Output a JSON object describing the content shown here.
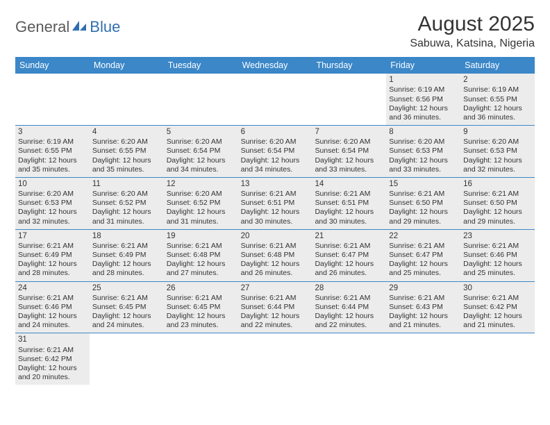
{
  "logo": {
    "part1": "General",
    "part2": "Blue"
  },
  "title": "August 2025",
  "location": "Sabuwa, Katsina, Nigeria",
  "colors": {
    "header_bg": "#3b87c8",
    "shade_bg": "#ececec",
    "rule": "#3b87c8",
    "logo_blue": "#2f6fb0",
    "logo_gray": "#5a5a5a"
  },
  "dow": [
    "Sunday",
    "Monday",
    "Tuesday",
    "Wednesday",
    "Thursday",
    "Friday",
    "Saturday"
  ],
  "weeks": [
    [
      {
        "n": "",
        "sr": "",
        "ss": "",
        "dl": ""
      },
      {
        "n": "",
        "sr": "",
        "ss": "",
        "dl": ""
      },
      {
        "n": "",
        "sr": "",
        "ss": "",
        "dl": ""
      },
      {
        "n": "",
        "sr": "",
        "ss": "",
        "dl": ""
      },
      {
        "n": "",
        "sr": "",
        "ss": "",
        "dl": ""
      },
      {
        "n": "1",
        "sr": "Sunrise: 6:19 AM",
        "ss": "Sunset: 6:56 PM",
        "dl": "Daylight: 12 hours and 36 minutes."
      },
      {
        "n": "2",
        "sr": "Sunrise: 6:19 AM",
        "ss": "Sunset: 6:55 PM",
        "dl": "Daylight: 12 hours and 36 minutes."
      }
    ],
    [
      {
        "n": "3",
        "sr": "Sunrise: 6:19 AM",
        "ss": "Sunset: 6:55 PM",
        "dl": "Daylight: 12 hours and 35 minutes."
      },
      {
        "n": "4",
        "sr": "Sunrise: 6:20 AM",
        "ss": "Sunset: 6:55 PM",
        "dl": "Daylight: 12 hours and 35 minutes."
      },
      {
        "n": "5",
        "sr": "Sunrise: 6:20 AM",
        "ss": "Sunset: 6:54 PM",
        "dl": "Daylight: 12 hours and 34 minutes."
      },
      {
        "n": "6",
        "sr": "Sunrise: 6:20 AM",
        "ss": "Sunset: 6:54 PM",
        "dl": "Daylight: 12 hours and 34 minutes."
      },
      {
        "n": "7",
        "sr": "Sunrise: 6:20 AM",
        "ss": "Sunset: 6:54 PM",
        "dl": "Daylight: 12 hours and 33 minutes."
      },
      {
        "n": "8",
        "sr": "Sunrise: 6:20 AM",
        "ss": "Sunset: 6:53 PM",
        "dl": "Daylight: 12 hours and 33 minutes."
      },
      {
        "n": "9",
        "sr": "Sunrise: 6:20 AM",
        "ss": "Sunset: 6:53 PM",
        "dl": "Daylight: 12 hours and 32 minutes."
      }
    ],
    [
      {
        "n": "10",
        "sr": "Sunrise: 6:20 AM",
        "ss": "Sunset: 6:53 PM",
        "dl": "Daylight: 12 hours and 32 minutes."
      },
      {
        "n": "11",
        "sr": "Sunrise: 6:20 AM",
        "ss": "Sunset: 6:52 PM",
        "dl": "Daylight: 12 hours and 31 minutes."
      },
      {
        "n": "12",
        "sr": "Sunrise: 6:20 AM",
        "ss": "Sunset: 6:52 PM",
        "dl": "Daylight: 12 hours and 31 minutes."
      },
      {
        "n": "13",
        "sr": "Sunrise: 6:21 AM",
        "ss": "Sunset: 6:51 PM",
        "dl": "Daylight: 12 hours and 30 minutes."
      },
      {
        "n": "14",
        "sr": "Sunrise: 6:21 AM",
        "ss": "Sunset: 6:51 PM",
        "dl": "Daylight: 12 hours and 30 minutes."
      },
      {
        "n": "15",
        "sr": "Sunrise: 6:21 AM",
        "ss": "Sunset: 6:50 PM",
        "dl": "Daylight: 12 hours and 29 minutes."
      },
      {
        "n": "16",
        "sr": "Sunrise: 6:21 AM",
        "ss": "Sunset: 6:50 PM",
        "dl": "Daylight: 12 hours and 29 minutes."
      }
    ],
    [
      {
        "n": "17",
        "sr": "Sunrise: 6:21 AM",
        "ss": "Sunset: 6:49 PM",
        "dl": "Daylight: 12 hours and 28 minutes."
      },
      {
        "n": "18",
        "sr": "Sunrise: 6:21 AM",
        "ss": "Sunset: 6:49 PM",
        "dl": "Daylight: 12 hours and 28 minutes."
      },
      {
        "n": "19",
        "sr": "Sunrise: 6:21 AM",
        "ss": "Sunset: 6:48 PM",
        "dl": "Daylight: 12 hours and 27 minutes."
      },
      {
        "n": "20",
        "sr": "Sunrise: 6:21 AM",
        "ss": "Sunset: 6:48 PM",
        "dl": "Daylight: 12 hours and 26 minutes."
      },
      {
        "n": "21",
        "sr": "Sunrise: 6:21 AM",
        "ss": "Sunset: 6:47 PM",
        "dl": "Daylight: 12 hours and 26 minutes."
      },
      {
        "n": "22",
        "sr": "Sunrise: 6:21 AM",
        "ss": "Sunset: 6:47 PM",
        "dl": "Daylight: 12 hours and 25 minutes."
      },
      {
        "n": "23",
        "sr": "Sunrise: 6:21 AM",
        "ss": "Sunset: 6:46 PM",
        "dl": "Daylight: 12 hours and 25 minutes."
      }
    ],
    [
      {
        "n": "24",
        "sr": "Sunrise: 6:21 AM",
        "ss": "Sunset: 6:46 PM",
        "dl": "Daylight: 12 hours and 24 minutes."
      },
      {
        "n": "25",
        "sr": "Sunrise: 6:21 AM",
        "ss": "Sunset: 6:45 PM",
        "dl": "Daylight: 12 hours and 24 minutes."
      },
      {
        "n": "26",
        "sr": "Sunrise: 6:21 AM",
        "ss": "Sunset: 6:45 PM",
        "dl": "Daylight: 12 hours and 23 minutes."
      },
      {
        "n": "27",
        "sr": "Sunrise: 6:21 AM",
        "ss": "Sunset: 6:44 PM",
        "dl": "Daylight: 12 hours and 22 minutes."
      },
      {
        "n": "28",
        "sr": "Sunrise: 6:21 AM",
        "ss": "Sunset: 6:44 PM",
        "dl": "Daylight: 12 hours and 22 minutes."
      },
      {
        "n": "29",
        "sr": "Sunrise: 6:21 AM",
        "ss": "Sunset: 6:43 PM",
        "dl": "Daylight: 12 hours and 21 minutes."
      },
      {
        "n": "30",
        "sr": "Sunrise: 6:21 AM",
        "ss": "Sunset: 6:42 PM",
        "dl": "Daylight: 12 hours and 21 minutes."
      }
    ],
    [
      {
        "n": "31",
        "sr": "Sunrise: 6:21 AM",
        "ss": "Sunset: 6:42 PM",
        "dl": "Daylight: 12 hours and 20 minutes."
      },
      {
        "n": "",
        "sr": "",
        "ss": "",
        "dl": ""
      },
      {
        "n": "",
        "sr": "",
        "ss": "",
        "dl": ""
      },
      {
        "n": "",
        "sr": "",
        "ss": "",
        "dl": ""
      },
      {
        "n": "",
        "sr": "",
        "ss": "",
        "dl": ""
      },
      {
        "n": "",
        "sr": "",
        "ss": "",
        "dl": ""
      },
      {
        "n": "",
        "sr": "",
        "ss": "",
        "dl": ""
      }
    ]
  ]
}
